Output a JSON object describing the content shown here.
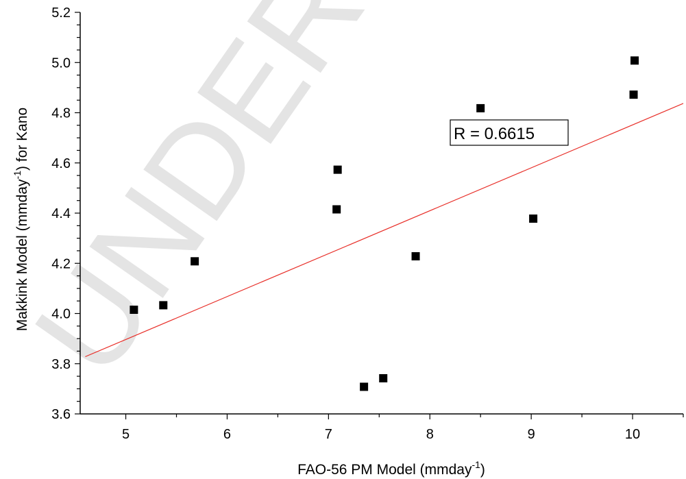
{
  "watermark": "UNDER PEER",
  "chart_data": {
    "type": "scatter",
    "title": "",
    "xlabel": "FAO-56 PM Model (mmday",
    "xlabel_sup": "-1",
    "xlabel_end": ")",
    "ylabel": "Makkink Model (mmday",
    "ylabel_sup": "-1",
    "ylabel_end": ") for Kano",
    "xlim": [
      4.55,
      10.5
    ],
    "ylim": [
      3.6,
      5.2
    ],
    "x_ticks": [
      "5",
      "6",
      "7",
      "8",
      "9",
      "10"
    ],
    "y_ticks": [
      "3.6",
      "3.8",
      "4.0",
      "4.2",
      "4.4",
      "4.6",
      "4.8",
      "5.0",
      "5.2"
    ],
    "points": [
      {
        "x": 5.08,
        "y": 4.015
      },
      {
        "x": 5.37,
        "y": 4.033
      },
      {
        "x": 5.68,
        "y": 4.208
      },
      {
        "x": 7.08,
        "y": 4.415
      },
      {
        "x": 7.09,
        "y": 4.573
      },
      {
        "x": 7.35,
        "y": 3.708
      },
      {
        "x": 7.54,
        "y": 3.742
      },
      {
        "x": 7.86,
        "y": 4.228
      },
      {
        "x": 8.5,
        "y": 4.818
      },
      {
        "x": 9.02,
        "y": 4.378
      },
      {
        "x": 10.01,
        "y": 4.872
      },
      {
        "x": 10.02,
        "y": 5.008
      }
    ],
    "fit_line": {
      "x": [
        4.6,
        10.5
      ],
      "y": [
        3.828,
        4.837
      ]
    },
    "annotation": "R = 0.6615",
    "marker_color": "#000000",
    "fit_line_color": "#e8302a",
    "grid": false,
    "legend": "none"
  }
}
